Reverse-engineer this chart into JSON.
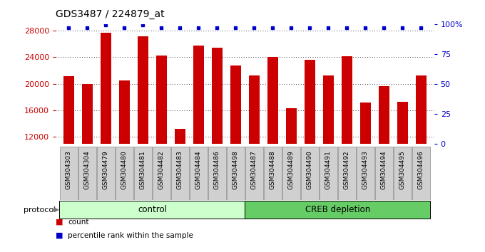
{
  "title": "GDS3487 / 224879_at",
  "categories": [
    "GSM304303",
    "GSM304304",
    "GSM304479",
    "GSM304480",
    "GSM304481",
    "GSM304482",
    "GSM304483",
    "GSM304484",
    "GSM304486",
    "GSM304498",
    "GSM304487",
    "GSM304488",
    "GSM304489",
    "GSM304490",
    "GSM304491",
    "GSM304492",
    "GSM304493",
    "GSM304494",
    "GSM304495",
    "GSM304496"
  ],
  "values": [
    21100,
    20000,
    27700,
    20500,
    27100,
    24200,
    13200,
    25700,
    25400,
    22700,
    21200,
    24000,
    16300,
    23600,
    21300,
    24100,
    17200,
    19600,
    17300,
    21200
  ],
  "pct_ranks": [
    97,
    97,
    99,
    97,
    99,
    97,
    97,
    97,
    97,
    97,
    97,
    97,
    97,
    97,
    97,
    97,
    97,
    97,
    97,
    97
  ],
  "bar_color": "#cc0000",
  "dot_color": "#0000cc",
  "ylim": [
    11000,
    29000
  ],
  "yticks_left": [
    12000,
    16000,
    20000,
    24000,
    28000
  ],
  "ytick_right_vals": [
    0,
    25,
    50,
    75,
    100
  ],
  "ytick_right_labels": [
    "0",
    "25",
    "50",
    "75",
    "100%"
  ],
  "n_control": 10,
  "control_label": "control",
  "creb_label": "CREB depletion",
  "protocol_label": "protocol",
  "control_color": "#ccffcc",
  "creb_color": "#66cc66",
  "xtick_box_color": "#d0d0d0",
  "xtick_box_edge": "#888888",
  "legend_count": "count",
  "legend_pct": "percentile rank within the sample",
  "bg_color": "#ffffff",
  "bar_width": 0.6
}
